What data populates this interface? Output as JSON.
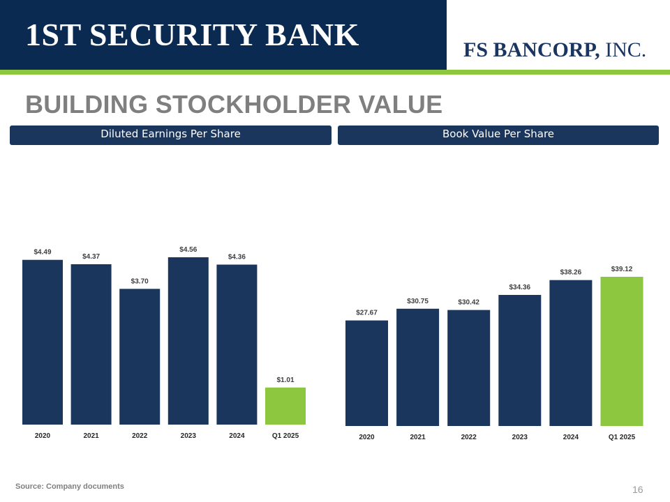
{
  "header": {
    "brand_left": "1ST SECURITY BANK",
    "brand_right_name": "FS BANCORP,",
    "brand_right_suffix": " INC."
  },
  "page_title": "BUILDING STOCKHOLDER VALUE",
  "colors": {
    "navy": "#1b365d",
    "green": "#8dc63f",
    "header_navy": "#0b2a52",
    "title_gray": "#7f7f7f"
  },
  "chart_data": [
    {
      "type": "bar",
      "title": "Diluted Earnings Per Share",
      "categories": [
        "2020",
        "2021",
        "2022",
        "2023",
        "2024",
        "Q1 2025"
      ],
      "values": [
        4.49,
        4.37,
        3.7,
        4.56,
        4.36,
        1.01
      ],
      "value_labels": [
        "$4.49",
        "$4.37",
        "$3.70",
        "$4.56",
        "$4.36",
        "$1.01"
      ],
      "highlight_category": "Q1 2025",
      "ylim": [
        0,
        4.56
      ],
      "xlabel": "",
      "ylabel": "",
      "grid": false
    },
    {
      "type": "bar",
      "title": "Book Value Per Share",
      "categories": [
        "2020",
        "2021",
        "2022",
        "2023",
        "2024",
        "Q1 2025"
      ],
      "values": [
        27.67,
        30.75,
        30.42,
        34.36,
        38.26,
        39.12
      ],
      "value_labels": [
        "$27.67",
        "$30.75",
        "$30.42",
        "$34.36",
        "$38.26",
        "$39.12"
      ],
      "highlight_category": "Q1 2025",
      "ylim": [
        0,
        39.12
      ],
      "xlabel": "",
      "ylabel": "",
      "grid": false
    }
  ],
  "footer": {
    "source": "Source: Company documents",
    "page_number": "16"
  }
}
